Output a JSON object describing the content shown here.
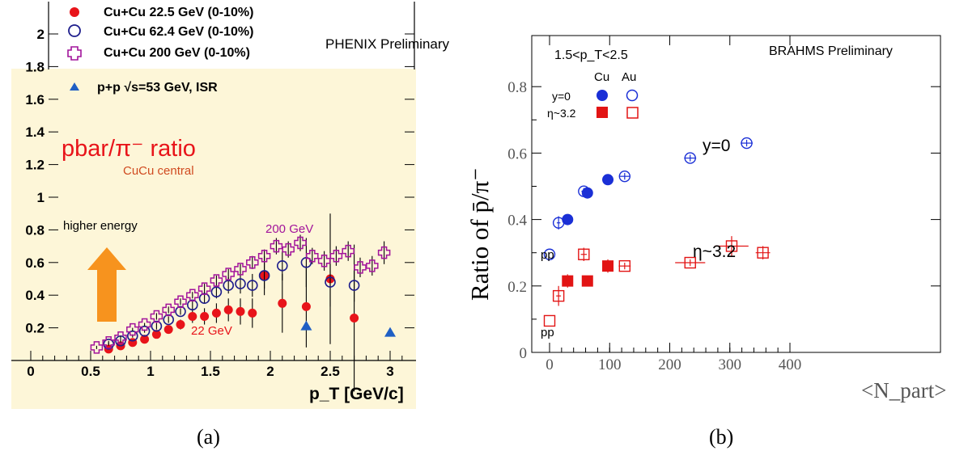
{
  "chart_data": [
    {
      "type": "scatter",
      "panel_label": "(a)",
      "title": "pbar/π⁻ ratio",
      "subtitle": "CuCu central",
      "watermark": "PHENIX Preliminary",
      "xlabel": "p_T [GeV/c]",
      "ylabel": "",
      "xlim": [
        0,
        3.2
      ],
      "ylim": [
        0,
        2.3
      ],
      "xticks": [
        "0",
        "0.5",
        "1",
        "1.5",
        "2",
        "2.5",
        "3"
      ],
      "yticks": [
        "0.2",
        "0.4",
        "0.6",
        "0.8",
        "1",
        "1.2",
        "1.4",
        "1.6",
        "1.8",
        "2"
      ],
      "legend_position": "top-left",
      "annotations": [
        "higher energy",
        "200 GeV",
        "22 GeV"
      ],
      "colors": {
        "red": "#e8141a",
        "navy": "#1e1e8c",
        "magenta": "#a2139b",
        "blue": "#1f5fc4",
        "orange": "#f7931e",
        "background": "#fdf6d8"
      },
      "series": [
        {
          "name": "Cu+Cu 22.5 GeV (0-10%)",
          "marker": "filled-circle",
          "x": [
            0.65,
            0.75,
            0.85,
            0.95,
            1.05,
            1.15,
            1.25,
            1.35,
            1.45,
            1.55,
            1.65,
            1.75,
            1.85,
            1.95,
            2.1,
            2.3,
            2.5,
            2.7
          ],
          "y": [
            0.07,
            0.09,
            0.11,
            0.13,
            0.16,
            0.19,
            0.22,
            0.27,
            0.27,
            0.29,
            0.31,
            0.3,
            0.29,
            0.52,
            0.35,
            0.33,
            0.5,
            0.26
          ],
          "err": [
            0.01,
            0.01,
            0.01,
            0.02,
            0.02,
            0.02,
            0.03,
            0.04,
            0.05,
            0.06,
            0.07,
            0.08,
            0.09,
            0.12,
            0.18,
            0.25,
            0.4,
            0.45
          ]
        },
        {
          "name": "Cu+Cu 62.4 GeV (0-10%)",
          "marker": "open-circle",
          "x": [
            0.65,
            0.75,
            0.85,
            0.95,
            1.05,
            1.15,
            1.25,
            1.35,
            1.45,
            1.55,
            1.65,
            1.75,
            1.85,
            1.95,
            2.1,
            2.3,
            2.5,
            2.7
          ],
          "y": [
            0.1,
            0.12,
            0.15,
            0.18,
            0.21,
            0.25,
            0.3,
            0.34,
            0.38,
            0.42,
            0.46,
            0.47,
            0.46,
            0.52,
            0.58,
            0.6,
            0.48,
            0.46
          ],
          "err": [
            0.01,
            0.01,
            0.01,
            0.01,
            0.02,
            0.02,
            0.02,
            0.03,
            0.03,
            0.04,
            0.05,
            0.06,
            0.07,
            0.08,
            0.09,
            0.15,
            0.15,
            0.1
          ]
        },
        {
          "name": "Cu+Cu 200 GeV (0-10%)",
          "marker": "open-cross",
          "x": [
            0.55,
            0.65,
            0.75,
            0.85,
            0.95,
            1.05,
            1.15,
            1.25,
            1.35,
            1.45,
            1.55,
            1.65,
            1.75,
            1.85,
            1.95,
            2.05,
            2.15,
            2.25,
            2.35,
            2.45,
            2.55,
            2.65,
            2.75,
            2.85,
            2.95
          ],
          "y": [
            0.08,
            0.11,
            0.14,
            0.19,
            0.22,
            0.27,
            0.31,
            0.36,
            0.4,
            0.44,
            0.49,
            0.53,
            0.56,
            0.6,
            0.64,
            0.7,
            0.68,
            0.72,
            0.64,
            0.61,
            0.64,
            0.67,
            0.57,
            0.58,
            0.66
          ],
          "err": [
            0.01,
            0.01,
            0.01,
            0.01,
            0.01,
            0.02,
            0.02,
            0.02,
            0.02,
            0.03,
            0.03,
            0.03,
            0.03,
            0.04,
            0.04,
            0.05,
            0.05,
            0.05,
            0.05,
            0.06,
            0.06,
            0.06,
            0.06,
            0.06,
            0.07
          ]
        },
        {
          "name": "p+p √s=53 GeV, ISR",
          "marker": "filled-triangle",
          "x": [
            2.3,
            3.0
          ],
          "y": [
            0.21,
            0.17
          ],
          "err": [
            0,
            0
          ]
        }
      ]
    },
    {
      "type": "scatter",
      "panel_label": "(b)",
      "title": "",
      "watermark": "BRAHMS  Preliminary",
      "cut_label": "1.5<p_T<2.5",
      "xlabel": "<N_part>",
      "ylabel": "Ratio of p̄/π⁻",
      "xlim": [
        -10,
        400
      ],
      "ylim": [
        0,
        0.86
      ],
      "xticks": [
        "0",
        "100",
        "200",
        "300",
        "400"
      ],
      "yticks": [
        "0",
        "0.2",
        "0.4",
        "0.6",
        "0.8"
      ],
      "legend_position": "top-left",
      "legend": {
        "col_cu": "Cu",
        "col_au": "Au",
        "row_y0": "y=0",
        "row_eta": "η~3.2"
      },
      "annotations": {
        "y0": "y=0",
        "eta": "η~3.2",
        "pp_top": "pp",
        "pp_bottom": "pp"
      },
      "colors": {
        "blue": "#1a2fd6",
        "red": "#e21414"
      },
      "series": [
        {
          "name": "Cu y=0",
          "marker": "filled-circle",
          "x": [
            30,
            63,
            97
          ],
          "y": [
            0.4,
            0.48,
            0.52
          ],
          "xerr": [
            0,
            0,
            0
          ],
          "yerr": [
            0,
            0,
            0
          ]
        },
        {
          "name": "Au y=0",
          "marker": "open-circle",
          "x": [
            15,
            57,
            125,
            234,
            328
          ],
          "y": [
            0.39,
            0.485,
            0.53,
            0.585,
            0.63
          ],
          "xerr": [
            3,
            4,
            8,
            10,
            10
          ],
          "yerr": [
            0.02,
            0.01,
            0.01,
            0.01,
            0.01
          ]
        },
        {
          "name": "Cu η~3.2",
          "marker": "filled-square",
          "x": [
            30,
            63,
            97
          ],
          "y": [
            0.215,
            0.215,
            0.26
          ],
          "xerr": [
            0,
            0,
            0
          ],
          "yerr": [
            0.02,
            0.01,
            0.02
          ]
        },
        {
          "name": "Au η~3.2",
          "marker": "open-square",
          "x": [
            15,
            57,
            125,
            234,
            303,
            355
          ],
          "y": [
            0.17,
            0.295,
            0.26,
            0.27,
            0.32,
            0.3
          ],
          "xerr": [
            4,
            5,
            10,
            25,
            28,
            12
          ],
          "yerr": [
            0.03,
            0.02,
            0.01,
            0.01,
            0.03,
            0.02
          ]
        },
        {
          "name": "pp y=0",
          "marker": "open-circle",
          "x": [
            0
          ],
          "y": [
            0.295
          ],
          "xerr": [
            0
          ],
          "yerr": [
            0
          ]
        },
        {
          "name": "pp η~3.2",
          "marker": "open-square",
          "x": [
            0
          ],
          "y": [
            0.095
          ],
          "xerr": [
            0
          ],
          "yerr": [
            0
          ]
        }
      ]
    }
  ]
}
